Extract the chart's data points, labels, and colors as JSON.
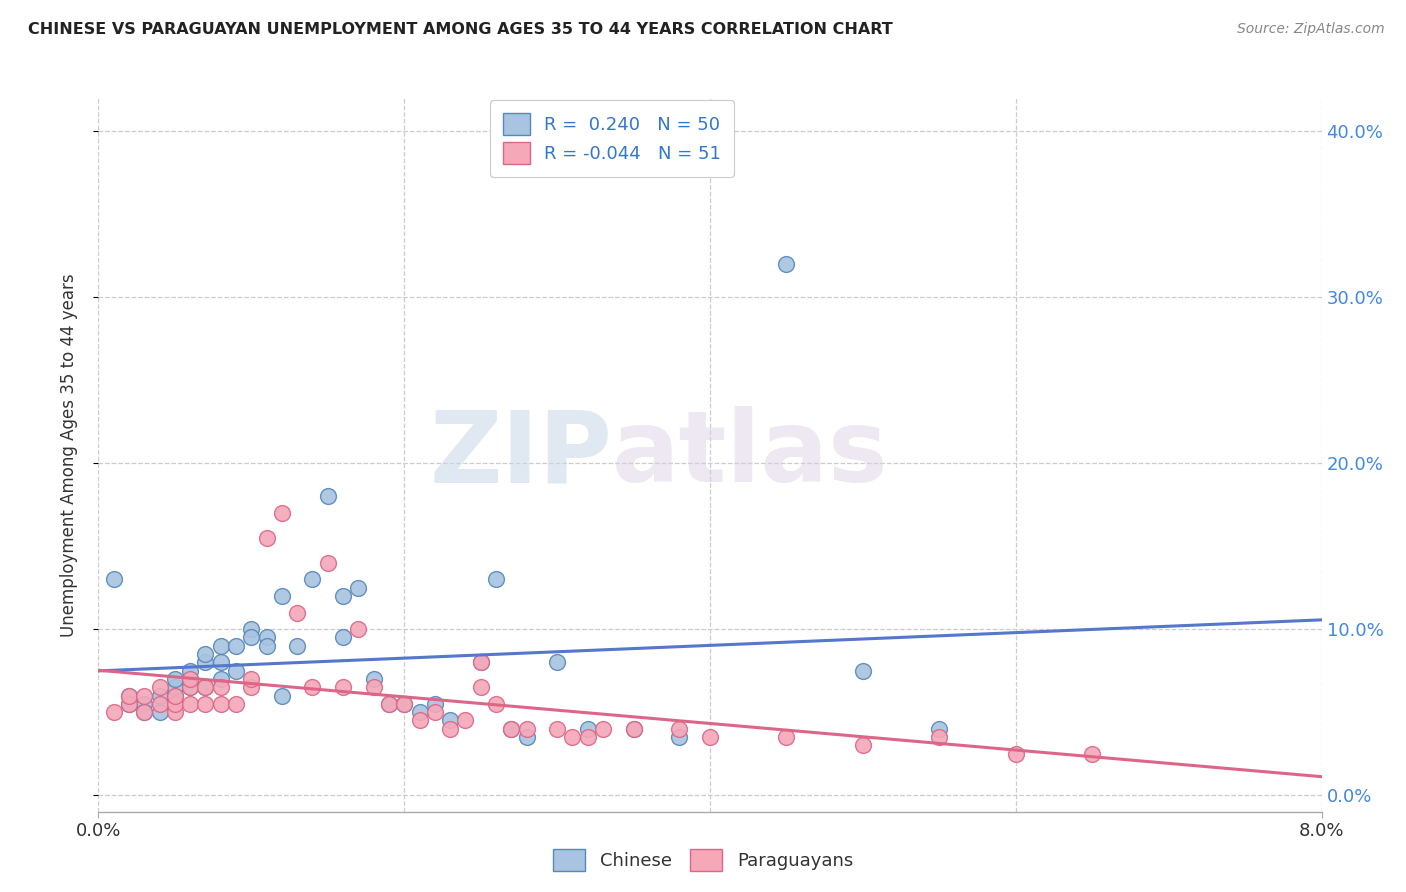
{
  "title": "CHINESE VS PARAGUAYAN UNEMPLOYMENT AMONG AGES 35 TO 44 YEARS CORRELATION CHART",
  "source": "Source: ZipAtlas.com",
  "ylabel": "Unemployment Among Ages 35 to 44 years",
  "yticks_labels": [
    "0.0%",
    "10.0%",
    "20.0%",
    "30.0%",
    "40.0%"
  ],
  "ytick_vals": [
    0.0,
    0.1,
    0.2,
    0.3,
    0.4
  ],
  "xrange": [
    0.0,
    0.08
  ],
  "yrange": [
    -0.01,
    0.42
  ],
  "yrange_display": [
    0.0,
    0.4
  ],
  "chinese_color": "#a8c4e0",
  "paraguayan_color": "#f4a8b8",
  "chinese_edge": "#5588bb",
  "paraguayan_edge": "#dd6688",
  "trend_chinese_color": "#5577cc",
  "trend_paraguayan_color": "#dd6688",
  "R_chinese": 0.24,
  "N_chinese": 50,
  "R_paraguayan": -0.044,
  "N_paraguayan": 51,
  "chinese_x": [
    0.001,
    0.002,
    0.002,
    0.003,
    0.003,
    0.004,
    0.004,
    0.005,
    0.005,
    0.005,
    0.006,
    0.006,
    0.006,
    0.007,
    0.007,
    0.007,
    0.008,
    0.008,
    0.008,
    0.009,
    0.009,
    0.01,
    0.01,
    0.011,
    0.011,
    0.012,
    0.012,
    0.013,
    0.014,
    0.015,
    0.016,
    0.016,
    0.017,
    0.018,
    0.019,
    0.02,
    0.021,
    0.022,
    0.023,
    0.025,
    0.026,
    0.027,
    0.028,
    0.03,
    0.032,
    0.035,
    0.038,
    0.045,
    0.05,
    0.055
  ],
  "chinese_y": [
    0.13,
    0.06,
    0.055,
    0.055,
    0.05,
    0.05,
    0.06,
    0.06,
    0.065,
    0.07,
    0.065,
    0.07,
    0.075,
    0.065,
    0.08,
    0.085,
    0.07,
    0.08,
    0.09,
    0.075,
    0.09,
    0.1,
    0.095,
    0.095,
    0.09,
    0.12,
    0.06,
    0.09,
    0.13,
    0.18,
    0.12,
    0.095,
    0.125,
    0.07,
    0.055,
    0.055,
    0.05,
    0.055,
    0.045,
    0.08,
    0.13,
    0.04,
    0.035,
    0.08,
    0.04,
    0.04,
    0.035,
    0.32,
    0.075,
    0.04
  ],
  "paraguayan_x": [
    0.001,
    0.002,
    0.002,
    0.003,
    0.003,
    0.004,
    0.004,
    0.005,
    0.005,
    0.005,
    0.006,
    0.006,
    0.006,
    0.007,
    0.007,
    0.008,
    0.008,
    0.009,
    0.01,
    0.01,
    0.011,
    0.012,
    0.013,
    0.014,
    0.015,
    0.016,
    0.017,
    0.018,
    0.019,
    0.02,
    0.021,
    0.022,
    0.023,
    0.024,
    0.025,
    0.025,
    0.026,
    0.027,
    0.028,
    0.03,
    0.031,
    0.032,
    0.033,
    0.035,
    0.038,
    0.04,
    0.045,
    0.05,
    0.055,
    0.06,
    0.065
  ],
  "paraguayan_y": [
    0.05,
    0.055,
    0.06,
    0.05,
    0.06,
    0.055,
    0.065,
    0.05,
    0.055,
    0.06,
    0.055,
    0.065,
    0.07,
    0.055,
    0.065,
    0.055,
    0.065,
    0.055,
    0.065,
    0.07,
    0.155,
    0.17,
    0.11,
    0.065,
    0.14,
    0.065,
    0.1,
    0.065,
    0.055,
    0.055,
    0.045,
    0.05,
    0.04,
    0.045,
    0.08,
    0.065,
    0.055,
    0.04,
    0.04,
    0.04,
    0.035,
    0.035,
    0.04,
    0.04,
    0.04,
    0.035,
    0.035,
    0.03,
    0.035,
    0.025,
    0.025
  ],
  "watermark_zip": "ZIP",
  "watermark_atlas": "atlas",
  "background_color": "#ffffff",
  "grid_color": "#cccccc",
  "grid_style": "--"
}
